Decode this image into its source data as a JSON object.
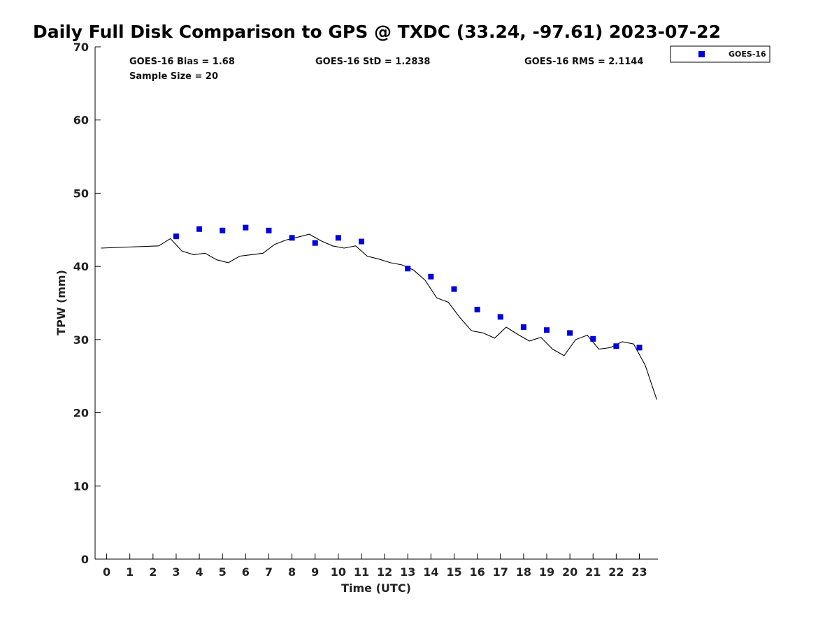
{
  "chart_data": {
    "type": "scatter",
    "title": "Daily Full Disk Comparison to GPS @ TXDC (33.24, -97.61) 2023-07-22",
    "xlabel": "Time (UTC)",
    "ylabel": "TPW (mm)",
    "xlim": [
      -0.5,
      23.8
    ],
    "ylim": [
      0,
      70
    ],
    "xticks": [
      0,
      1,
      2,
      3,
      4,
      5,
      6,
      7,
      8,
      9,
      10,
      11,
      12,
      13,
      14,
      15,
      16,
      17,
      18,
      19,
      20,
      21,
      22,
      23
    ],
    "yticks": [
      0,
      10,
      20,
      30,
      40,
      50,
      60,
      70
    ],
    "stats": {
      "bias": "GOES-16 Bias = 1.68",
      "std": "GOES-16 StD = 1.2838",
      "rms": "GOES-16 RMS = 2.1144",
      "sample_size": "Sample Size = 20"
    },
    "legend": {
      "position": "top-right",
      "label": "GOES-16"
    },
    "colors": {
      "goes16": "#0000dd",
      "gps": "#000000"
    },
    "series": [
      {
        "name": "GOES-16",
        "kind": "scatter",
        "x": [
          3,
          4,
          5,
          6,
          7,
          8,
          9,
          10,
          11,
          13,
          14,
          15,
          16,
          17,
          18,
          19,
          20,
          21,
          22,
          23
        ],
        "y": [
          44.1,
          45.1,
          44.9,
          45.3,
          44.9,
          43.9,
          43.2,
          43.9,
          43.4,
          39.7,
          38.6,
          36.9,
          34.1,
          33.1,
          31.7,
          31.3,
          30.9,
          30.1,
          29.1,
          28.9
        ]
      },
      {
        "name": "GPS",
        "kind": "line",
        "x": [
          -0.25,
          2.25,
          2.75,
          3.25,
          3.75,
          4.25,
          4.75,
          5.25,
          5.75,
          6.25,
          6.75,
          7.25,
          7.75,
          8.25,
          8.75,
          9.25,
          9.75,
          10.25,
          10.75,
          11.25,
          11.75,
          12.25,
          12.75,
          13.25,
          13.75,
          14.25,
          14.75,
          15.25,
          15.75,
          16.25,
          16.75,
          17.25,
          17.75,
          18.25,
          18.75,
          19.25,
          19.75,
          20.25,
          20.75,
          21.25,
          21.75,
          22.25,
          22.75,
          23.25,
          23.75
        ],
        "y": [
          42.5,
          42.8,
          43.8,
          42.1,
          41.6,
          41.8,
          40.9,
          40.5,
          41.4,
          41.6,
          41.8,
          43.0,
          43.6,
          44.0,
          44.4,
          43.5,
          42.8,
          42.5,
          42.8,
          41.4,
          41.0,
          40.5,
          40.2,
          39.5,
          38.1,
          35.7,
          35.1,
          33.0,
          31.2,
          30.9,
          30.2,
          31.7,
          30.7,
          29.8,
          30.3,
          28.7,
          27.8,
          30.0,
          30.6,
          28.7,
          28.9,
          29.7,
          29.4,
          26.5,
          21.8
        ]
      }
    ]
  }
}
